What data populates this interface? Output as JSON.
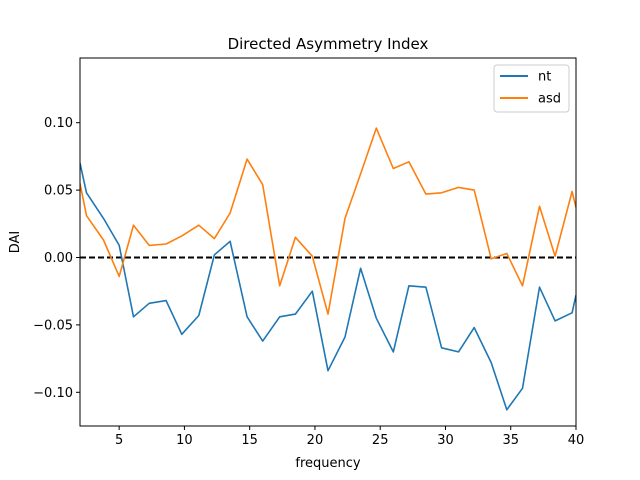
{
  "chart_data": {
    "type": "line",
    "title": "Directed Asymmetry Index",
    "xlabel": "frequency",
    "ylabel": "DAI",
    "xlim": [
      2,
      40
    ],
    "ylim": [
      -0.125,
      0.148
    ],
    "xticks": [
      5,
      10,
      15,
      20,
      25,
      30,
      35,
      40
    ],
    "yticks": [
      -0.1,
      -0.05,
      0.0,
      0.05,
      0.1
    ],
    "ytick_labels": [
      "−0.10",
      "−0.05",
      "0.00",
      "0.05",
      "0.10"
    ],
    "grid": false,
    "legend_position": "top-right",
    "reference_line": {
      "y": 0,
      "style": "dashed",
      "color": "#000000"
    },
    "x": [
      2.0,
      2.5,
      3.8,
      5.0,
      6.1,
      7.3,
      8.6,
      9.8,
      11.1,
      12.3,
      13.5,
      14.8,
      16.0,
      17.3,
      18.5,
      19.8,
      21.0,
      22.3,
      23.5,
      24.7,
      26.0,
      27.2,
      28.5,
      29.7,
      31.0,
      32.2,
      33.5,
      34.7,
      35.9,
      37.2,
      38.4,
      39.7,
      40.0
    ],
    "series": [
      {
        "name": "nt",
        "color": "#1f77b4",
        "values": [
          0.07,
          0.048,
          0.029,
          0.009,
          -0.044,
          -0.034,
          -0.032,
          -0.057,
          -0.043,
          0.002,
          0.012,
          -0.044,
          -0.062,
          -0.044,
          -0.042,
          -0.025,
          -0.084,
          -0.059,
          -0.008,
          -0.045,
          -0.07,
          -0.021,
          -0.022,
          -0.067,
          -0.07,
          -0.052,
          -0.078,
          -0.113,
          -0.097,
          -0.022,
          -0.047,
          -0.041,
          -0.028
        ]
      },
      {
        "name": "asd",
        "color": "#ff7f0e",
        "values": [
          0.055,
          0.031,
          0.013,
          -0.014,
          0.024,
          0.009,
          0.01,
          0.016,
          0.024,
          0.014,
          0.033,
          0.073,
          0.054,
          -0.021,
          0.015,
          0.001,
          -0.042,
          0.029,
          0.062,
          0.096,
          0.066,
          0.071,
          0.047,
          0.048,
          0.052,
          0.05,
          -0.001,
          0.003,
          -0.021,
          0.038,
          0.001,
          0.049,
          0.037
        ]
      }
    ]
  }
}
